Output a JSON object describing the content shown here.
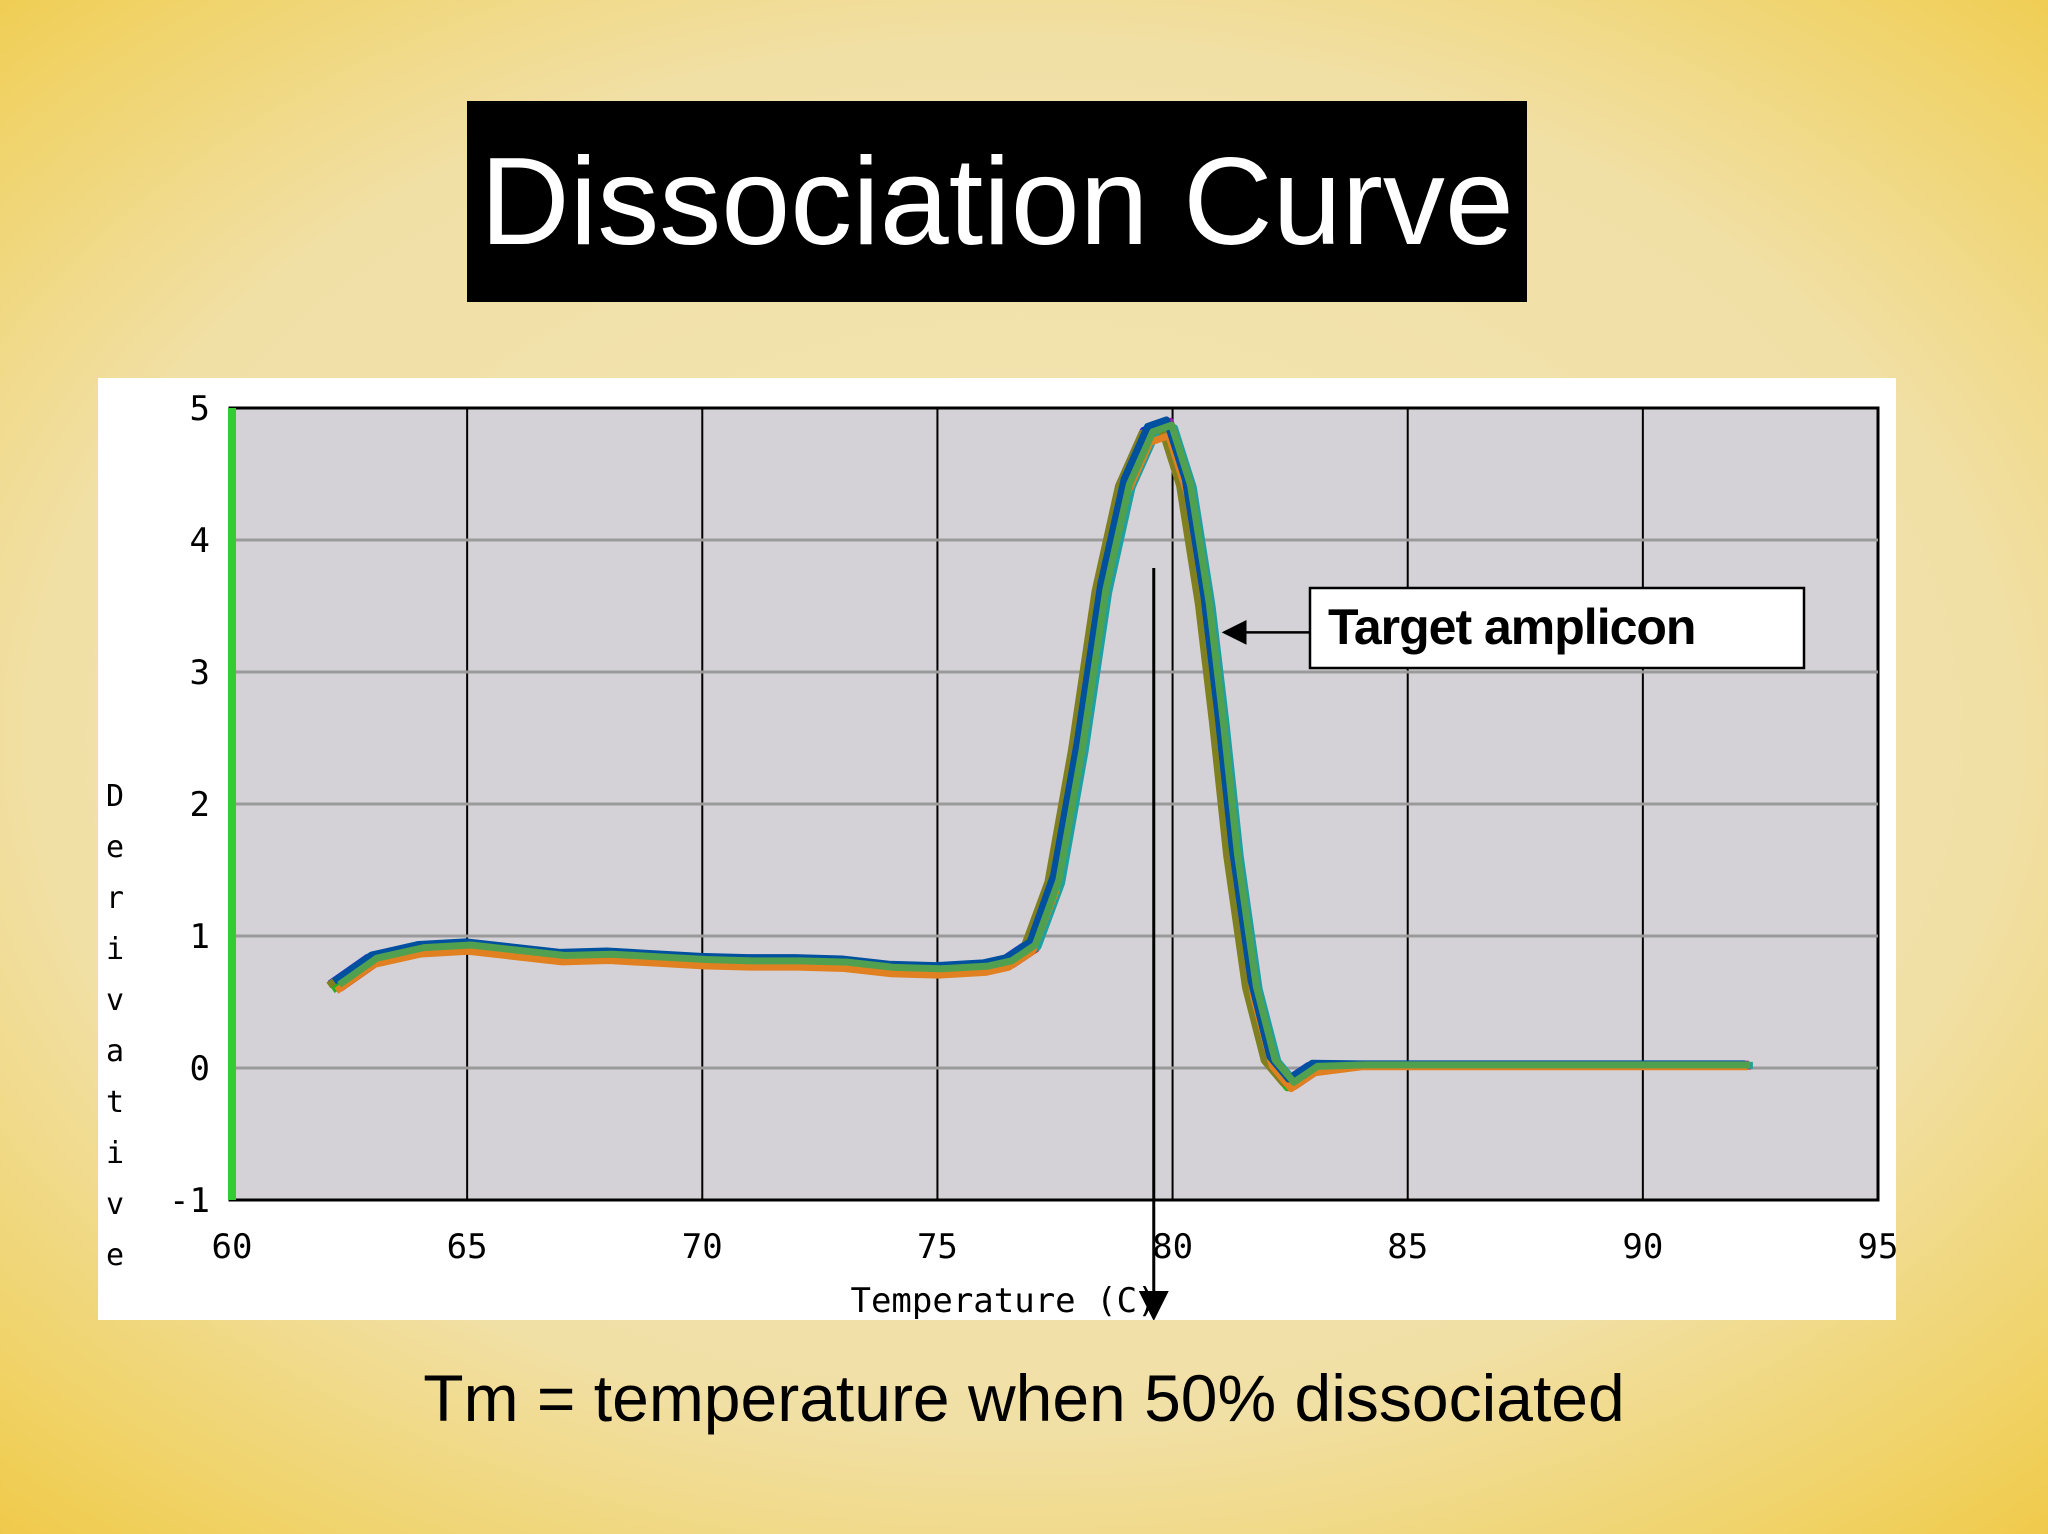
{
  "slide": {
    "title": "Dissociation Curve",
    "caption": "Tm = temperature when 50% dissociated"
  },
  "chart_data": {
    "type": "line",
    "title": "",
    "xlabel": "Temperature (C)",
    "ylabel": "Derivative",
    "xlim": [
      60,
      95
    ],
    "ylim": [
      -1,
      5
    ],
    "x_ticks": [
      "60",
      "65",
      "70",
      "75",
      "80",
      "85",
      "90",
      "95"
    ],
    "y_ticks": [
      "5",
      "4",
      "3",
      "2",
      "1",
      "0",
      "-1"
    ],
    "grid": true,
    "annotations": [
      {
        "text": "Target amplicon",
        "points_to": {
          "x": 80.8,
          "y": 3.3
        }
      },
      {
        "text": "",
        "marker": "Tm arrow",
        "x": 79.6
      }
    ],
    "series_colors": [
      "#2020e0",
      "#d02020",
      "#20b020",
      "#a020a0",
      "#20a0a0",
      "#808020",
      "#e08020",
      "#0050a0",
      "#50a050"
    ],
    "series": [
      {
        "offset": 0.0,
        "x": [
          62.2,
          63.0,
          64.0,
          65.0,
          66.0,
          67.0,
          68.0,
          69.0,
          70.0,
          71.0,
          72.0,
          73.0,
          74.0,
          75.0,
          76.0,
          76.5,
          77.0,
          77.5,
          78.0,
          78.5,
          79.0,
          79.5,
          79.9,
          80.3,
          80.7,
          81.0,
          81.3,
          81.7,
          82.1,
          82.5,
          83.0,
          84.0,
          86.0,
          88.0,
          90.0,
          92.2
        ],
        "y": [
          0.62,
          0.82,
          0.9,
          0.92,
          0.88,
          0.84,
          0.85,
          0.83,
          0.81,
          0.8,
          0.8,
          0.79,
          0.75,
          0.74,
          0.76,
          0.8,
          0.92,
          1.4,
          2.4,
          3.6,
          4.4,
          4.8,
          4.85,
          4.4,
          3.5,
          2.6,
          1.6,
          0.6,
          0.05,
          -0.12,
          0.0,
          0.02,
          0.02,
          0.02,
          0.02,
          0.02
        ]
      }
    ]
  }
}
